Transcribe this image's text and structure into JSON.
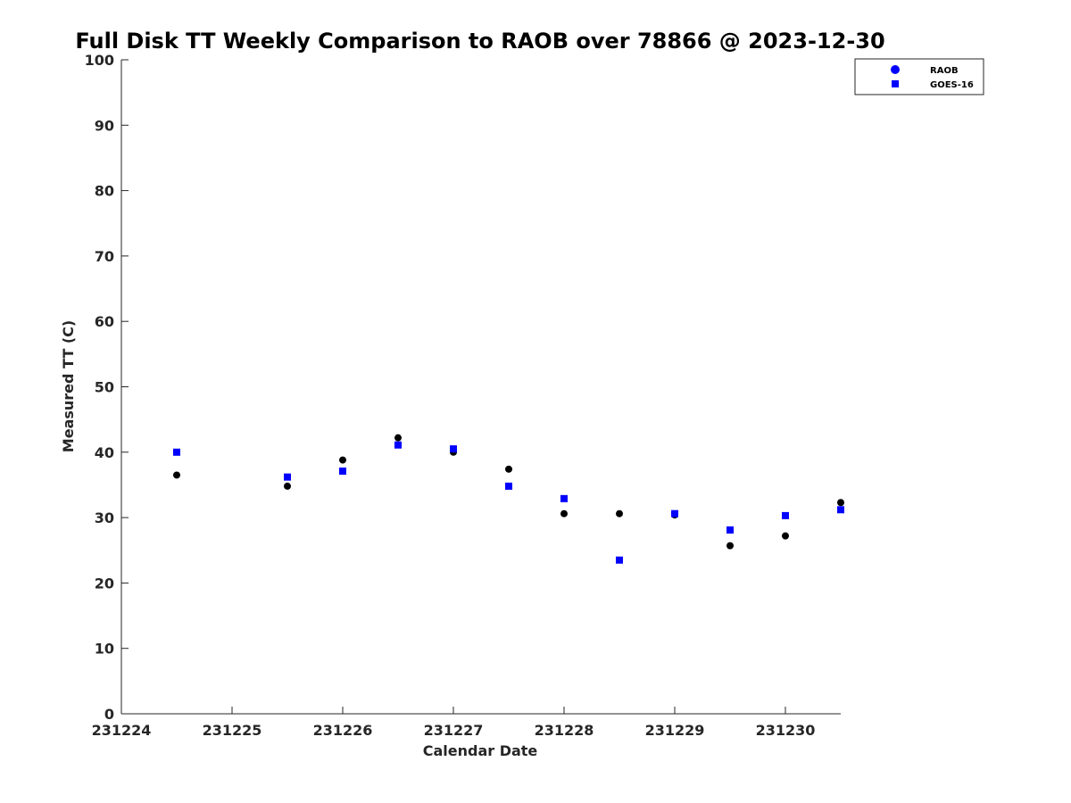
{
  "chart_data": {
    "type": "scatter",
    "title": "Full Disk TT Weekly Comparison to RAOB over 78866 @ 2023-12-30",
    "xlabel": "Calendar Date",
    "ylabel": "Measured TT (C)",
    "xlim": [
      231224,
      231230.5
    ],
    "ylim": [
      0,
      100
    ],
    "x_ticks": [
      231224,
      231225,
      231226,
      231227,
      231228,
      231229,
      231230
    ],
    "x_tick_labels": [
      "231224",
      "231225",
      "231226",
      "231227",
      "231228",
      "231229",
      "231230"
    ],
    "y_ticks": [
      0,
      10,
      20,
      30,
      40,
      50,
      60,
      70,
      80,
      90,
      100
    ],
    "y_tick_labels": [
      "0",
      "10",
      "20",
      "30",
      "40",
      "50",
      "60",
      "70",
      "80",
      "90",
      "100"
    ],
    "grid": false,
    "legend_position": "top-right",
    "series": [
      {
        "name": "RAOB",
        "marker": "circle",
        "color": "#000000",
        "legend_color": "#0000ff",
        "x": [
          231224.5,
          231225.5,
          231226,
          231226.5,
          231227,
          231227.5,
          231228,
          231228.5,
          231229,
          231229.5,
          231230,
          231230.5
        ],
        "y": [
          36.5,
          34.8,
          38.8,
          42.2,
          40.0,
          37.4,
          30.6,
          30.6,
          30.4,
          25.7,
          27.2,
          32.3
        ]
      },
      {
        "name": "GOES-16",
        "marker": "square",
        "color": "#0000ff",
        "legend_color": "#0000ff",
        "x": [
          231224.5,
          231225.5,
          231226,
          231226.5,
          231227,
          231227.5,
          231228,
          231228.5,
          231229,
          231229.5,
          231230,
          231230.5
        ],
        "y": [
          40.0,
          36.2,
          37.1,
          41.1,
          40.5,
          34.8,
          32.9,
          23.5,
          30.6,
          28.1,
          30.3,
          31.2
        ]
      }
    ]
  }
}
